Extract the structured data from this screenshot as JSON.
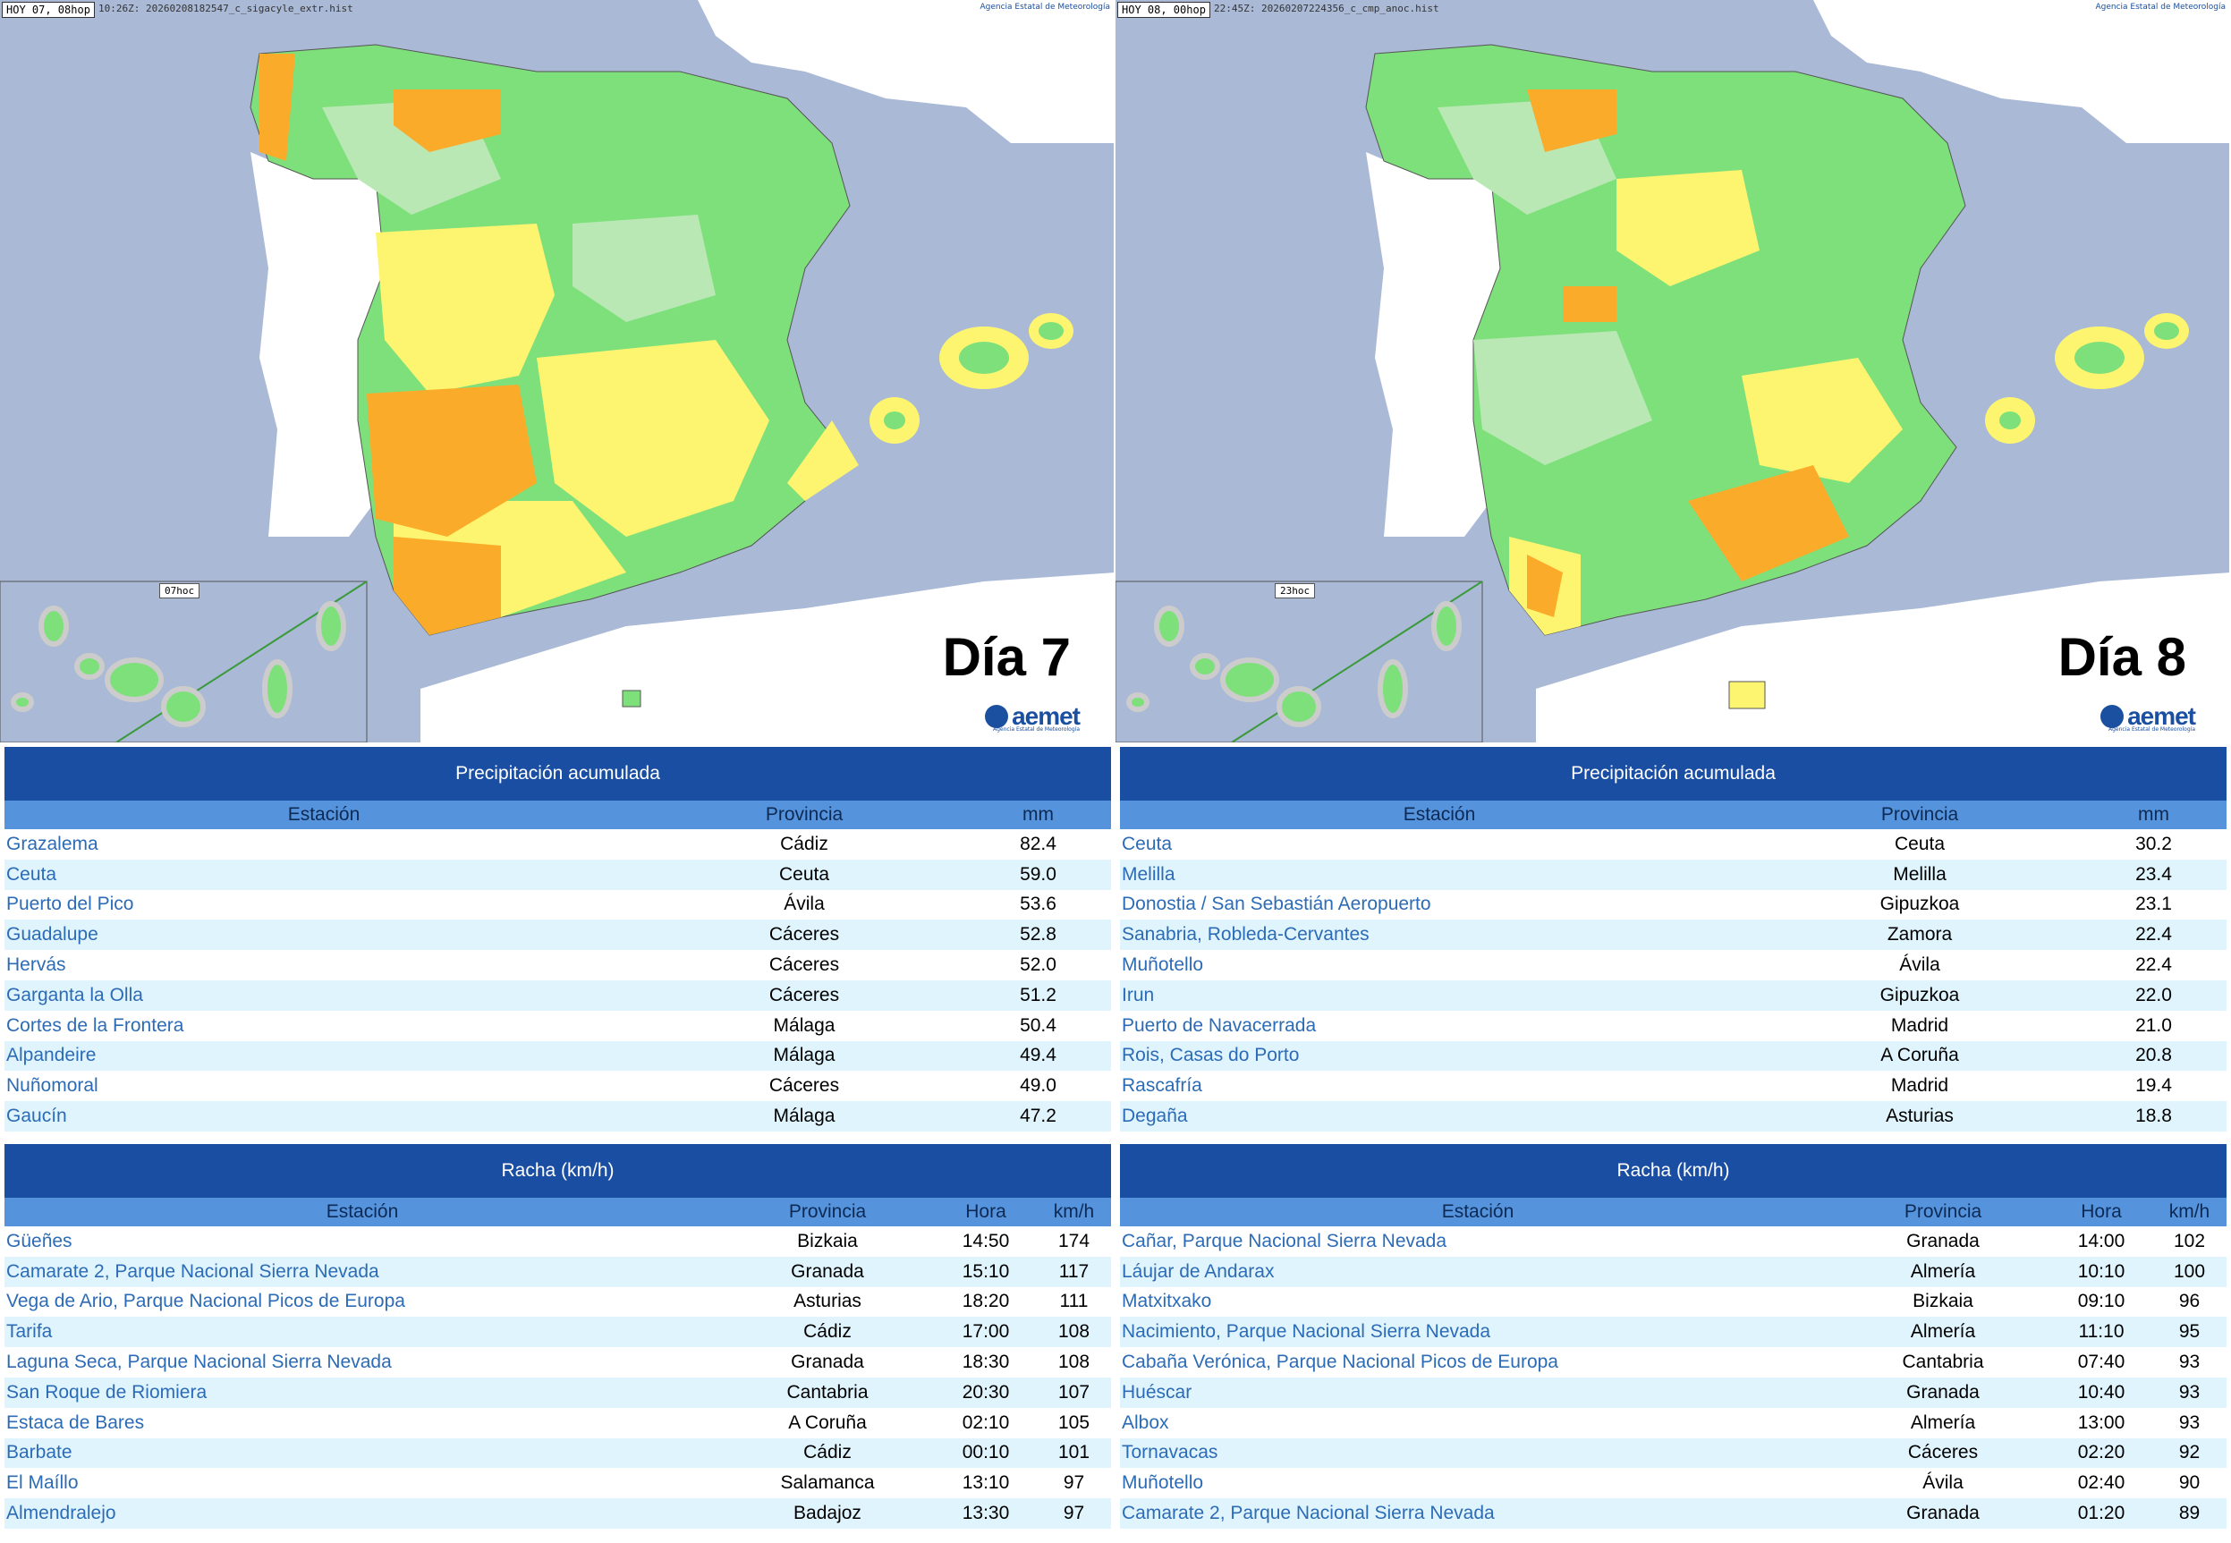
{
  "colors": {
    "header_dark": "#1a4ea2",
    "header_light": "#5593dd",
    "row_alt": "#e0f4fd",
    "station_link": "#2c6bb5",
    "green": "#7ee07a",
    "yellow": "#fdf570",
    "orange": "#fbab2a",
    "sea": "#a9b9d6"
  },
  "panels": [
    {
      "map": {
        "label": "HOY 07, 08hop",
        "file": "10:26Z: 20260208182547_c_sigacyle_extr.hist",
        "credit": "Agencia Estatal de Meteorología",
        "canary_label": "07hoc",
        "day": "Día 7",
        "logo": "aemet",
        "logo_sub": "Agencia Estatal de Meteorología"
      },
      "precip": {
        "title": "Precipitación acumulada",
        "headers": [
          "Estación",
          "Provincia",
          "mm"
        ],
        "rows": [
          [
            "Grazalema",
            "Cádiz",
            "82.4"
          ],
          [
            "Ceuta",
            "Ceuta",
            "59.0"
          ],
          [
            "Puerto del Pico",
            "Ávila",
            "53.6"
          ],
          [
            "Guadalupe",
            "Cáceres",
            "52.8"
          ],
          [
            "Hervás",
            "Cáceres",
            "52.0"
          ],
          [
            "Garganta la Olla",
            "Cáceres",
            "51.2"
          ],
          [
            "Cortes de la Frontera",
            "Málaga",
            "50.4"
          ],
          [
            "Alpandeire",
            "Málaga",
            "49.4"
          ],
          [
            "Nuñomoral",
            "Cáceres",
            "49.0"
          ],
          [
            "Gaucín",
            "Málaga",
            "47.2"
          ]
        ]
      },
      "wind": {
        "title": "Racha (km/h)",
        "headers": [
          "Estación",
          "Provincia",
          "Hora",
          "km/h"
        ],
        "rows": [
          [
            "Güeñes",
            "Bizkaia",
            "14:50",
            "174"
          ],
          [
            "Camarate 2, Parque Nacional Sierra Nevada",
            "Granada",
            "15:10",
            "117"
          ],
          [
            "Vega de Ario, Parque Nacional Picos de Europa",
            "Asturias",
            "18:20",
            "111"
          ],
          [
            "Tarifa",
            "Cádiz",
            "17:00",
            "108"
          ],
          [
            "Laguna Seca, Parque Nacional Sierra Nevada",
            "Granada",
            "18:30",
            "108"
          ],
          [
            "San Roque de Riomiera",
            "Cantabria",
            "20:30",
            "107"
          ],
          [
            "Estaca de Bares",
            "A Coruña",
            "02:10",
            "105"
          ],
          [
            "Barbate",
            "Cádiz",
            "00:10",
            "101"
          ],
          [
            "El Maíllo",
            "Salamanca",
            "13:10",
            "97"
          ],
          [
            "Almendralejo",
            "Badajoz",
            "13:30",
            "97"
          ]
        ]
      }
    },
    {
      "map": {
        "label": "HOY 08, 00hop",
        "file": "22:45Z: 20260207224356_c_cmp_anoc.hist",
        "credit": "Agencia Estatal de Meteorología",
        "canary_label": "23hoc",
        "day": "Día 8",
        "logo": "aemet",
        "logo_sub": "Agencia Estatal de Meteorología"
      },
      "precip": {
        "title": "Precipitación acumulada",
        "headers": [
          "Estación",
          "Provincia",
          "mm"
        ],
        "rows": [
          [
            "Ceuta",
            "Ceuta",
            "30.2"
          ],
          [
            "Melilla",
            "Melilla",
            "23.4"
          ],
          [
            "Donostia / San Sebastián Aeropuerto",
            "Gipuzkoa",
            "23.1"
          ],
          [
            "Sanabria, Robleda-Cervantes",
            "Zamora",
            "22.4"
          ],
          [
            "Muñotello",
            "Ávila",
            "22.4"
          ],
          [
            "Irun",
            "Gipuzkoa",
            "22.0"
          ],
          [
            "Puerto de Navacerrada",
            "Madrid",
            "21.0"
          ],
          [
            "Rois, Casas do Porto",
            "A Coruña",
            "20.8"
          ],
          [
            "Rascafría",
            "Madrid",
            "19.4"
          ],
          [
            "Degaña",
            "Asturias",
            "18.8"
          ]
        ]
      },
      "wind": {
        "title": "Racha (km/h)",
        "headers": [
          "Estación",
          "Provincia",
          "Hora",
          "km/h"
        ],
        "rows": [
          [
            "Cañar, Parque Nacional Sierra Nevada",
            "Granada",
            "14:00",
            "102"
          ],
          [
            "Láujar de Andarax",
            "Almería",
            "10:10",
            "100"
          ],
          [
            "Matxitxako",
            "Bizkaia",
            "09:10",
            "96"
          ],
          [
            "Nacimiento, Parque Nacional Sierra Nevada",
            "Almería",
            "11:10",
            "95"
          ],
          [
            "Cabaña Verónica, Parque Nacional Picos de Europa",
            "Cantabria",
            "07:40",
            "93"
          ],
          [
            "Huéscar",
            "Granada",
            "10:40",
            "93"
          ],
          [
            "Albox",
            "Almería",
            "13:00",
            "93"
          ],
          [
            "Tornavacas",
            "Cáceres",
            "02:20",
            "92"
          ],
          [
            "Muñotello",
            "Ávila",
            "02:40",
            "90"
          ],
          [
            "Camarate 2, Parque Nacional Sierra Nevada",
            "Granada",
            "01:20",
            "89"
          ]
        ]
      }
    }
  ]
}
